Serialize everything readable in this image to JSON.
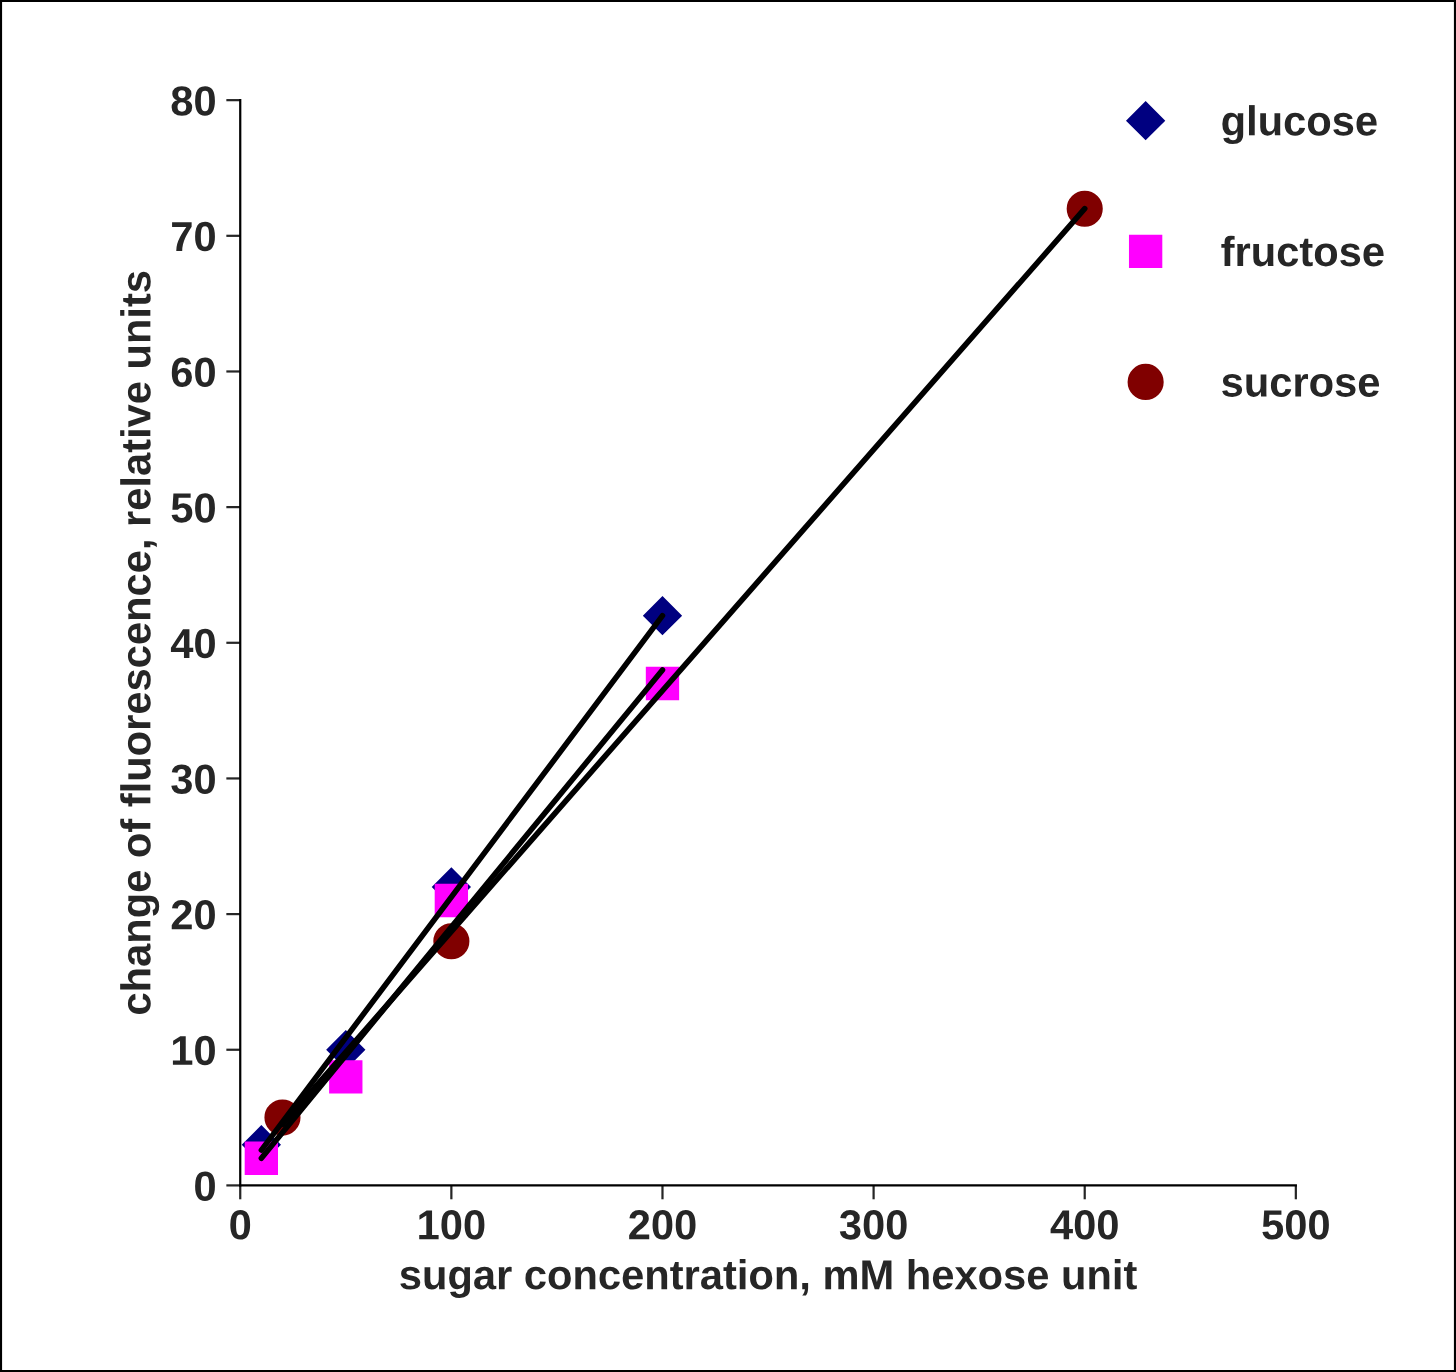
{
  "chart_data": {
    "type": "scatter",
    "xlabel": "sugar concentration, mM hexose unit",
    "ylabel": "change of fluorescence, relative units",
    "series": [
      {
        "name": "glucose",
        "color": "#000080",
        "marker": "diamond",
        "x": [
          10,
          50,
          100,
          200
        ],
        "values": [
          3,
          10,
          22,
          42
        ]
      },
      {
        "name": "fructose",
        "color": "#ff00ff",
        "marker": "square",
        "x": [
          10,
          50,
          100,
          200
        ],
        "values": [
          2,
          8,
          21,
          37
        ]
      },
      {
        "name": "sucrose",
        "color": "#800000",
        "marker": "circle",
        "x": [
          20,
          100,
          400
        ],
        "values": [
          5,
          18,
          72
        ]
      },
      {
        "type": "line",
        "color": "#000000",
        "marker": "none",
        "x": [
          10,
          200
        ],
        "values": [
          2.6,
          42
        ]
      },
      {
        "type": "line",
        "color": "#000000",
        "marker": "none",
        "x": [
          10,
          200
        ],
        "values": [
          2,
          38
        ]
      },
      {
        "type": "line",
        "color": "#000000",
        "marker": "none",
        "x": [
          20,
          400
        ],
        "values": [
          4.5,
          72
        ]
      }
    ],
    "xlim": [
      0,
      500
    ],
    "xticks": [
      0,
      100,
      200,
      300,
      400,
      500
    ],
    "ylim": [
      0,
      80
    ],
    "yticks": [
      0,
      10,
      20,
      30,
      40,
      50,
      60,
      70,
      80
    ],
    "grid": false,
    "legend": "top right"
  }
}
